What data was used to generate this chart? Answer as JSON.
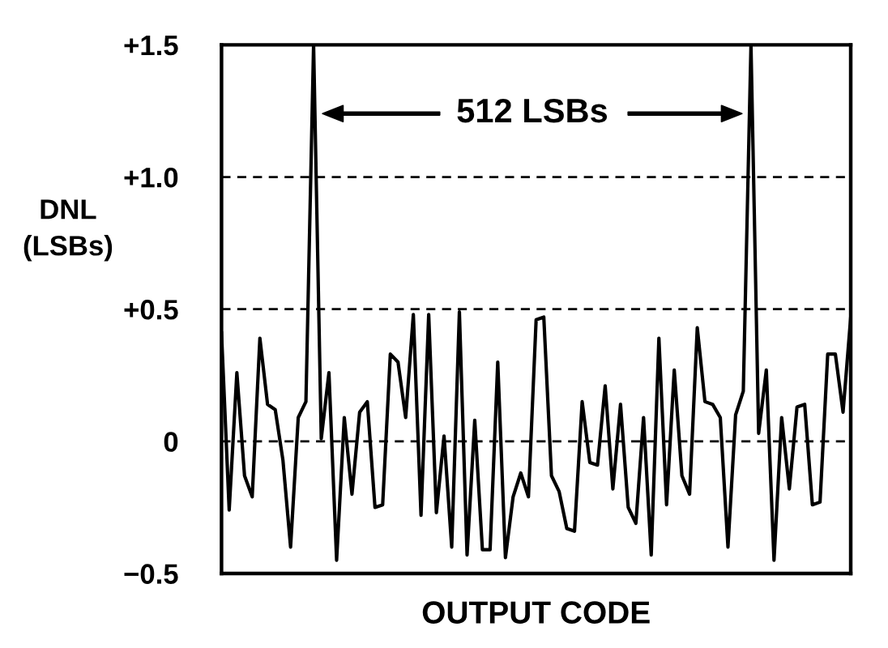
{
  "chart_data": {
    "type": "line",
    "ylabel": "DNL\n(LSBs)",
    "xlabel": "OUTPUT CODE",
    "annotations": [
      "512 LSBs"
    ],
    "categories": [
      null,
      null,
      null,
      null,
      null,
      null,
      null,
      null,
      null,
      null,
      null,
      null,
      null,
      null,
      null,
      null,
      null,
      null,
      null,
      null,
      null,
      null,
      null,
      null,
      null,
      null,
      null,
      null,
      null,
      null,
      null,
      null,
      null,
      null,
      null,
      null,
      null,
      null,
      null,
      null,
      null,
      null,
      null,
      null,
      null,
      null,
      null,
      null,
      null,
      null,
      null,
      null,
      null,
      null,
      null,
      null,
      null,
      null,
      null,
      null,
      null,
      null,
      null,
      null,
      null,
      null,
      null,
      null,
      null,
      null,
      null,
      null,
      null,
      null,
      null,
      null,
      null,
      null,
      null,
      null,
      null,
      null,
      null
    ],
    "values": [
      0.41,
      -0.26,
      0.26,
      -0.13,
      -0.21,
      0.39,
      0.14,
      0.12,
      -0.07,
      -0.4,
      0.09,
      0.15,
      1.5,
      0.01,
      0.26,
      -0.45,
      0.09,
      -0.2,
      0.11,
      0.15,
      -0.25,
      -0.24,
      0.33,
      0.3,
      0.09,
      0.48,
      -0.28,
      0.48,
      -0.27,
      0.02,
      -0.4,
      0.49,
      -0.43,
      0.08,
      -0.41,
      -0.41,
      0.3,
      -0.44,
      -0.21,
      -0.12,
      -0.21,
      0.46,
      0.47,
      -0.13,
      -0.19,
      -0.33,
      -0.34,
      0.15,
      -0.08,
      -0.09,
      0.21,
      -0.18,
      0.14,
      -0.25,
      -0.31,
      0.09,
      -0.43,
      0.39,
      -0.24,
      0.27,
      -0.13,
      -0.2,
      0.43,
      0.15,
      0.14,
      0.09,
      -0.4,
      0.1,
      0.19,
      1.5,
      0.03,
      0.27,
      -0.45,
      0.09,
      -0.18,
      0.13,
      0.14,
      -0.24,
      -0.23,
      0.33,
      0.33,
      0.11,
      0.47
    ],
    "color": "#000000",
    "ylim": [
      -0.5,
      1.5
    ],
    "yticks": [
      {
        "value": -0.5,
        "label": "−0.5"
      },
      0,
      {
        "value": 0.5,
        "label": "+0.5"
      },
      {
        "value": 1.0,
        "label": "+1.0"
      },
      {
        "value": 1.5,
        "label": "+1.5"
      }
    ],
    "grid": "y",
    "tick_labels": "y",
    "marker": "none",
    "line_style": "solid"
  }
}
